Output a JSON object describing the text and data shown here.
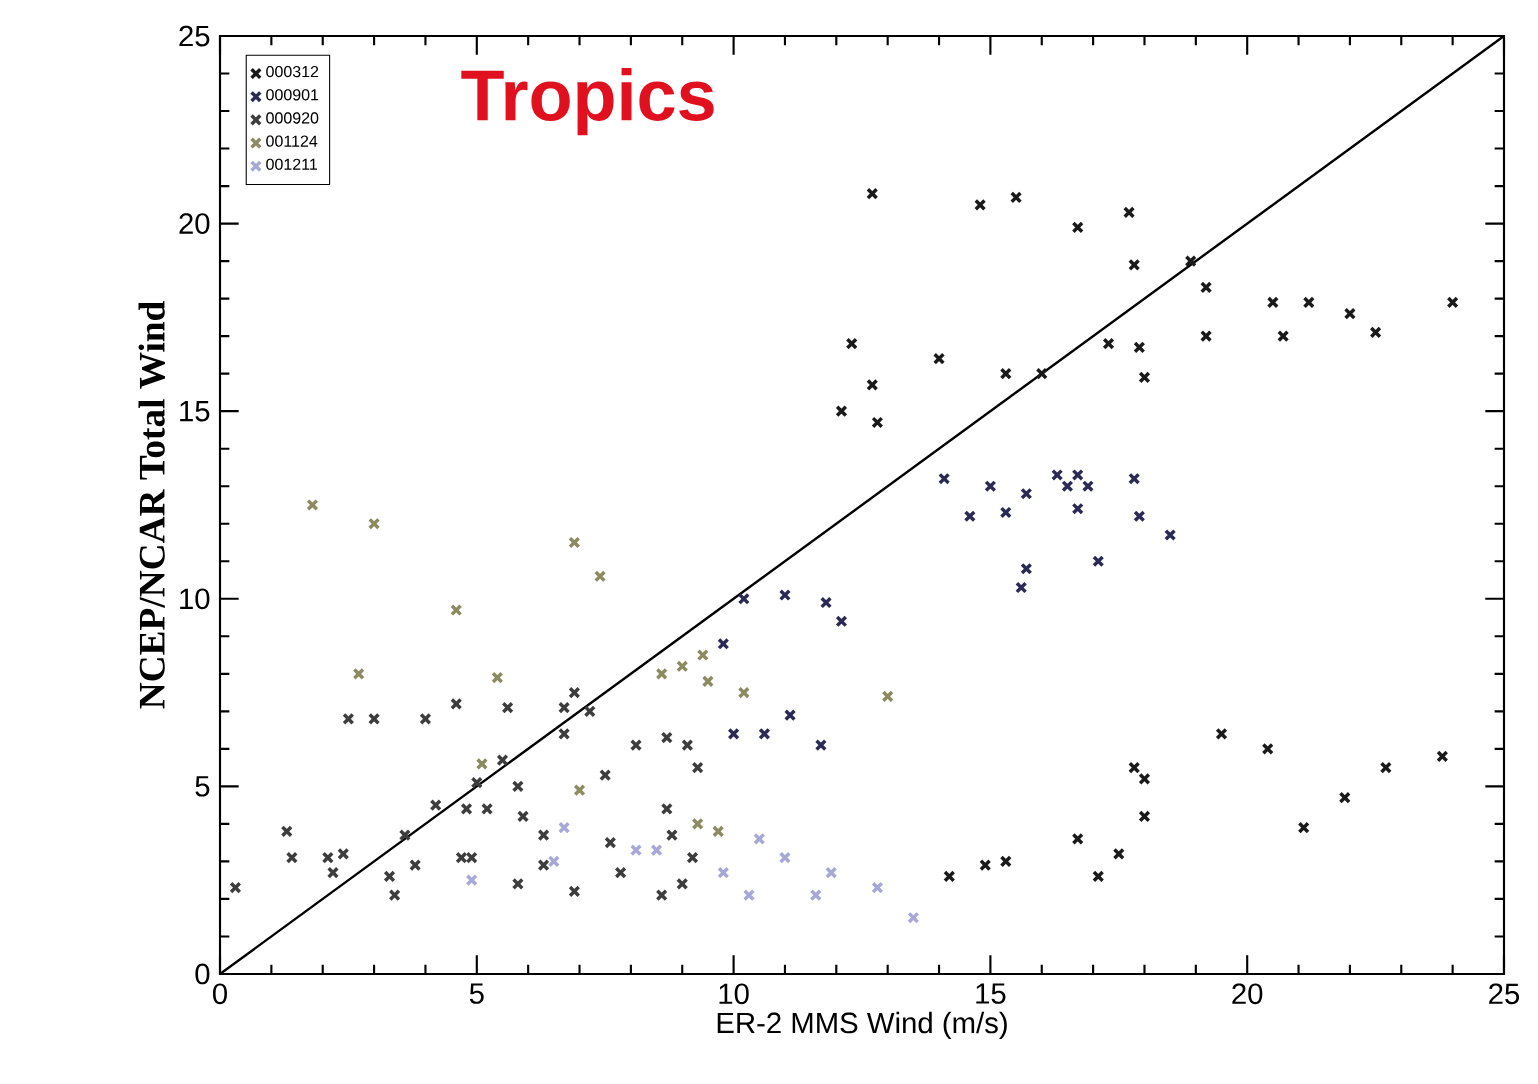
{
  "chart_data": {
    "type": "scatter",
    "xlabel": "ER-2 MMS Wind (m/s)",
    "ylabel": "NCEP/NCAR Total Wind",
    "annotations": [
      "Tropics"
    ],
    "xlim": [
      0,
      25
    ],
    "ylim": [
      0,
      25
    ],
    "xticks": [
      0,
      5,
      10,
      15,
      20,
      25
    ],
    "yticks": [
      0,
      5,
      10,
      15,
      20,
      25
    ],
    "grid": false,
    "legend": "top left",
    "marker": "cross",
    "series": [
      {
        "name": "000312",
        "color": "#1a1a1a",
        "x": [
          12.7,
          14.8,
          15.5,
          16.7,
          17.7,
          17.8,
          18.9,
          19.2,
          20.5,
          21.2,
          22.0,
          22.5,
          24.0,
          19.2,
          20.7,
          17.3,
          17.9,
          18.0,
          12.3,
          12.7,
          12.1,
          12.8,
          14.0,
          15.3,
          16.0,
          19.5,
          20.4,
          21.9,
          21.1,
          22.7,
          23.8,
          17.8,
          18.0,
          18.0,
          17.5,
          17.1,
          16.7,
          15.3,
          14.9,
          14.2
        ],
        "values": [
          20.8,
          20.5,
          20.7,
          19.9,
          20.3,
          18.9,
          19.0,
          18.3,
          17.9,
          17.9,
          17.6,
          17.1,
          17.9,
          17.0,
          17.0,
          16.8,
          16.7,
          15.9,
          16.8,
          15.7,
          15.0,
          14.7,
          16.4,
          16.0,
          16.0,
          6.4,
          6.0,
          4.7,
          3.9,
          5.5,
          5.8,
          5.5,
          5.2,
          4.2,
          3.2,
          2.6,
          3.6,
          3.0,
          2.9,
          2.6
        ]
      },
      {
        "name": "000901",
        "color": "#2a2a55",
        "x": [
          14.1,
          15.0,
          15.7,
          16.3,
          16.7,
          16.5,
          16.9,
          17.8,
          14.6,
          15.3,
          16.7,
          17.9,
          18.5,
          15.7,
          15.6,
          17.1,
          10.2,
          11.0,
          11.8,
          12.1,
          9.8,
          10.6,
          11.1,
          10.0,
          11.7
        ],
        "values": [
          13.2,
          13.0,
          12.8,
          13.3,
          13.3,
          13.0,
          13.0,
          13.2,
          12.2,
          12.3,
          12.4,
          12.2,
          11.7,
          10.8,
          10.3,
          11.0,
          10.0,
          10.1,
          9.9,
          9.4,
          8.8,
          6.4,
          6.9,
          6.4,
          6.1
        ]
      },
      {
        "name": "000920",
        "color": "#3d3d3d",
        "x": [
          2.5,
          3.0,
          4.0,
          4.6,
          5.6,
          6.7,
          6.9,
          7.2,
          6.7,
          5.5,
          5.8,
          5.0,
          4.2,
          4.8,
          5.2,
          8.1,
          8.7,
          9.1,
          9.3,
          7.5,
          0.3,
          1.3,
          1.4,
          2.1,
          2.4,
          2.2,
          3.3,
          3.4,
          3.6,
          3.8,
          4.7,
          4.9,
          5.8,
          6.3,
          6.3,
          6.9,
          7.6,
          7.8,
          8.8,
          9.2,
          8.6,
          9.0,
          8.7,
          5.9
        ],
        "values": [
          6.8,
          6.8,
          6.8,
          7.2,
          7.1,
          7.1,
          7.5,
          7.0,
          6.4,
          5.7,
          5.0,
          5.1,
          4.5,
          4.4,
          4.4,
          6.1,
          6.3,
          6.1,
          5.5,
          5.3,
          2.3,
          3.8,
          3.1,
          3.1,
          3.2,
          2.7,
          2.6,
          2.1,
          3.7,
          2.9,
          3.1,
          3.1,
          2.4,
          2.9,
          3.7,
          2.2,
          3.5,
          2.7,
          3.7,
          3.1,
          2.1,
          2.4,
          4.4,
          4.2
        ]
      },
      {
        "name": "001124",
        "color": "#8c8a60",
        "x": [
          1.8,
          3.0,
          6.9,
          7.4,
          4.6,
          2.7,
          5.4,
          5.1,
          7.0,
          9.3,
          9.7,
          8.6,
          9.0,
          9.4,
          9.5,
          10.2,
          13.0
        ],
        "values": [
          12.5,
          12.0,
          11.5,
          10.6,
          9.7,
          8.0,
          7.9,
          5.6,
          4.9,
          4.0,
          3.8,
          8.0,
          8.2,
          8.5,
          7.8,
          7.5,
          7.4
        ]
      },
      {
        "name": "001211",
        "color": "#a8a8d8",
        "x": [
          4.9,
          6.7,
          8.1,
          8.5,
          9.8,
          6.5,
          13.5,
          12.8,
          11.9,
          11.6,
          10.3,
          10.5,
          11.0
        ],
        "values": [
          2.5,
          3.9,
          3.3,
          3.3,
          2.7,
          3.0,
          1.5,
          2.3,
          2.7,
          2.1,
          2.1,
          3.6,
          3.1
        ]
      },
      {
        "type": "line",
        "marker": "none",
        "color": "#000000",
        "x": [
          0,
          25
        ],
        "values": [
          0,
          25
        ]
      }
    ]
  }
}
